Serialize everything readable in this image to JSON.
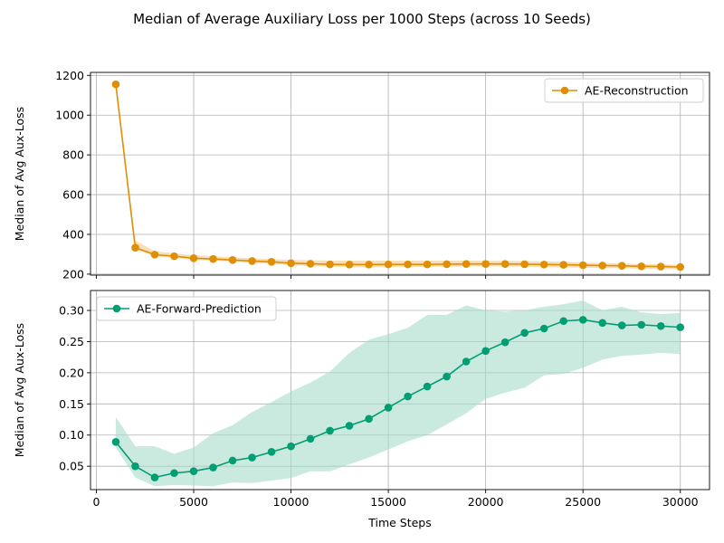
{
  "figure": {
    "title": "Median of Average Auxiliary Loss per 1000 Steps (across 10 Seeds)"
  },
  "chart_data": [
    {
      "type": "line",
      "title": "",
      "xlabel": "",
      "ylabel": "Median of Avg Aux-Loss",
      "xlim": [
        -300,
        31500
      ],
      "ylim": [
        195,
        1215
      ],
      "x_ticks": [
        0,
        5000,
        10000,
        15000,
        20000,
        25000,
        30000
      ],
      "y_ticks": [
        200,
        400,
        600,
        800,
        1000,
        1200
      ],
      "y_tick_labels": [
        "200",
        "400",
        "600",
        "800",
        "1000",
        "1200"
      ],
      "grid": true,
      "legend_position": "top-right",
      "series": [
        {
          "name": "AE-Reconstruction",
          "color": "#de8f05",
          "band_color": "#f3c98a",
          "x": [
            1000,
            2000,
            3000,
            4000,
            5000,
            6000,
            7000,
            8000,
            9000,
            10000,
            11000,
            12000,
            13000,
            14000,
            15000,
            16000,
            17000,
            18000,
            19000,
            20000,
            21000,
            22000,
            23000,
            24000,
            25000,
            26000,
            27000,
            28000,
            29000,
            30000
          ],
          "values": [
            1155,
            333,
            298,
            290,
            280,
            276,
            271,
            266,
            262,
            255,
            252,
            249,
            248,
            248,
            249,
            249,
            249,
            250,
            251,
            251,
            251,
            250,
            248,
            247,
            245,
            243,
            242,
            239,
            238,
            236
          ],
          "lower": [
            1150,
            325,
            290,
            282,
            272,
            268,
            262,
            257,
            252,
            245,
            240,
            237,
            235,
            234,
            235,
            235,
            236,
            237,
            238,
            238,
            238,
            237,
            235,
            234,
            232,
            230,
            229,
            227,
            226,
            224
          ],
          "upper": [
            1160,
            370,
            315,
            305,
            295,
            290,
            285,
            280,
            276,
            272,
            270,
            268,
            268,
            268,
            268,
            268,
            268,
            268,
            268,
            268,
            267,
            266,
            264,
            262,
            258,
            256,
            254,
            250,
            249,
            247
          ]
        }
      ]
    },
    {
      "type": "line",
      "title": "",
      "xlabel": "Time Steps",
      "ylabel": "Median of Avg Aux-Loss",
      "xlim": [
        -300,
        31500
      ],
      "ylim": [
        0.0125,
        0.332
      ],
      "x_ticks": [
        0,
        5000,
        10000,
        15000,
        20000,
        25000,
        30000
      ],
      "x_tick_labels": [
        "0",
        "5000",
        "10000",
        "15000",
        "20000",
        "25000",
        "30000"
      ],
      "y_ticks": [
        0.05,
        0.1,
        0.15,
        0.2,
        0.25,
        0.3
      ],
      "y_tick_labels": [
        "0.05",
        "0.10",
        "0.15",
        "0.20",
        "0.25",
        "0.30"
      ],
      "grid": true,
      "legend_position": "top-left",
      "series": [
        {
          "name": "AE-Forward-Prediction",
          "color": "#029e73",
          "band_color": "#a6dccb",
          "x": [
            1000,
            2000,
            3000,
            4000,
            5000,
            6000,
            7000,
            8000,
            9000,
            10000,
            11000,
            12000,
            13000,
            14000,
            15000,
            16000,
            17000,
            18000,
            19000,
            20000,
            21000,
            22000,
            23000,
            24000,
            25000,
            26000,
            27000,
            28000,
            29000,
            30000
          ],
          "values": [
            0.089,
            0.05,
            0.032,
            0.039,
            0.042,
            0.048,
            0.059,
            0.064,
            0.073,
            0.082,
            0.094,
            0.107,
            0.115,
            0.126,
            0.144,
            0.162,
            0.178,
            0.194,
            0.218,
            0.235,
            0.249,
            0.264,
            0.271,
            0.283,
            0.285,
            0.28,
            0.276,
            0.277,
            0.275,
            0.273
          ],
          "lower": [
            0.08,
            0.032,
            0.018,
            0.02,
            0.019,
            0.018,
            0.024,
            0.023,
            0.027,
            0.031,
            0.042,
            0.042,
            0.053,
            0.064,
            0.077,
            0.09,
            0.1,
            0.117,
            0.135,
            0.158,
            0.168,
            0.176,
            0.196,
            0.198,
            0.208,
            0.221,
            0.227,
            0.229,
            0.232,
            0.23
          ],
          "upper": [
            0.129,
            0.082,
            0.082,
            0.07,
            0.08,
            0.103,
            0.116,
            0.137,
            0.153,
            0.17,
            0.184,
            0.202,
            0.232,
            0.253,
            0.262,
            0.272,
            0.293,
            0.293,
            0.308,
            0.3,
            0.298,
            0.3,
            0.306,
            0.31,
            0.316,
            0.3,
            0.306,
            0.297,
            0.294,
            0.296
          ]
        }
      ]
    }
  ]
}
